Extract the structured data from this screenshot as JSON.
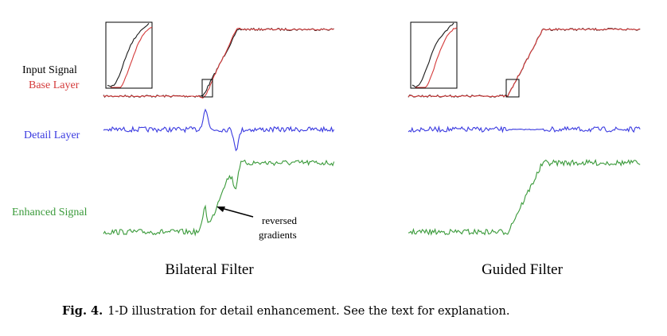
{
  "figure": {
    "row_labels": {
      "input_signal": "Input Signal",
      "base_layer": "Base Layer",
      "detail_layer": "Detail Layer",
      "enhanced_signal": "Enhanced Signal"
    },
    "annotation": {
      "line1": "reversed",
      "line2": "gradients"
    },
    "panel_titles": {
      "left": "Bilateral Filter",
      "right": "Guided Filter"
    },
    "caption": {
      "label": "Fig. 4.",
      "text": "1-D illustration for detail enhancement. See the text for explanation."
    },
    "colors": {
      "input": "#1a1a1a",
      "base": "#d43a3a",
      "detail": "#3a3ae0",
      "enhanced": "#3a9a3a"
    }
  }
}
